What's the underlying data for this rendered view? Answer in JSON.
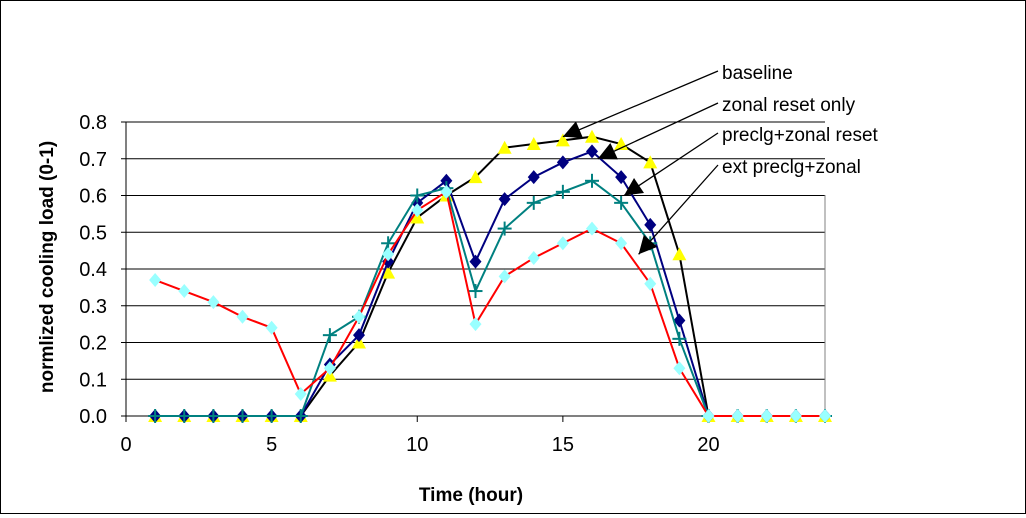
{
  "chart_data": {
    "type": "line",
    "title": "",
    "xlabel": "Time (hour)",
    "ylabel": "normlized cooling load (0-1)",
    "xlim": [
      0,
      24
    ],
    "ylim": [
      0,
      0.8
    ],
    "x_ticks": [
      "0",
      "5",
      "10",
      "15",
      "20"
    ],
    "y_ticks": [
      "0.0",
      "0.1",
      "0.2",
      "0.3",
      "0.4",
      "0.5",
      "0.6",
      "0.7",
      "0.8"
    ],
    "grid": "horizontal",
    "x": [
      1,
      2,
      3,
      4,
      5,
      6,
      7,
      8,
      9,
      10,
      11,
      12,
      13,
      14,
      15,
      16,
      17,
      18,
      19,
      20,
      21,
      22,
      23,
      24
    ],
    "series": [
      {
        "name": "baseline",
        "line_color": "#000000",
        "marker": "triangle",
        "marker_color": "#ffff00",
        "values": [
          0,
          0,
          0,
          0,
          0,
          0,
          0.11,
          0.2,
          0.39,
          0.54,
          0.6,
          0.65,
          0.73,
          0.74,
          0.75,
          0.76,
          0.74,
          0.69,
          0.44,
          0,
          0,
          0,
          0,
          0
        ]
      },
      {
        "name": "zonal reset only",
        "line_color": "#000080",
        "marker": "diamond",
        "marker_color": "#000080",
        "values": [
          0,
          0,
          0,
          0,
          0,
          0,
          0.14,
          0.22,
          0.42,
          0.58,
          0.64,
          0.42,
          0.59,
          0.65,
          0.69,
          0.72,
          0.65,
          0.52,
          0.26,
          0,
          0,
          0,
          0,
          0
        ]
      },
      {
        "name": "preclg+zonal reset",
        "line_color": "#008080",
        "marker": "plus",
        "marker_color": "#008080",
        "values": [
          0,
          0,
          0,
          0,
          0,
          0,
          0.22,
          0.27,
          0.47,
          0.6,
          0.62,
          0.34,
          0.51,
          0.58,
          0.61,
          0.64,
          0.58,
          0.47,
          0.21,
          0,
          0,
          0,
          0,
          0
        ]
      },
      {
        "name": "ext preclg+zonal",
        "line_color": "#ff0000",
        "marker": "diamond",
        "marker_color": "#99ffff",
        "values": [
          0.37,
          0.34,
          0.31,
          0.27,
          0.24,
          0.06,
          0.13,
          0.27,
          0.44,
          0.56,
          0.61,
          0.25,
          0.38,
          0.43,
          0.47,
          0.51,
          0.47,
          0.36,
          0.13,
          0,
          0,
          0,
          0,
          0
        ]
      }
    ],
    "annotations": [
      {
        "text": "baseline",
        "series": 0,
        "point_x": 15.0,
        "point_y": 0.76
      },
      {
        "text": "zonal reset only",
        "series": 1,
        "point_x": 16.2,
        "point_y": 0.7
      },
      {
        "text": "preclg+zonal reset",
        "series": 2,
        "point_x": 17.1,
        "point_y": 0.6
      },
      {
        "text": "ext preclg+zonal",
        "series": 3,
        "point_x": 17.6,
        "point_y": 0.44
      }
    ]
  }
}
